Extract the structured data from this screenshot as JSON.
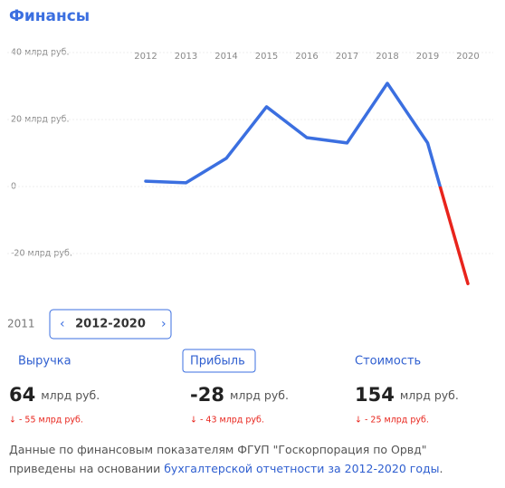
{
  "header": {
    "title": "Финансы"
  },
  "chart_data": {
    "type": "line",
    "categories": [
      "2012",
      "2013",
      "2014",
      "2015",
      "2016",
      "2017",
      "2018",
      "2019",
      "2020"
    ],
    "values": [
      1.6,
      1.1,
      8.4,
      23.8,
      14.6,
      13,
      30.8,
      13,
      -29
    ],
    "color": "#3b6fe0",
    "negative_color": "#e8241c",
    "ylim": [
      -30,
      40
    ],
    "yticks": [
      {
        "value": 40,
        "label": "40 млрд руб."
      },
      {
        "value": 20,
        "label": "20 млрд руб."
      },
      0,
      {
        "value": -20,
        "label": "-20 млрд руб."
      }
    ],
    "grid": true
  },
  "period": {
    "prev": "2011",
    "range": "2012-2020"
  },
  "metrics": [
    {
      "label": "Выручка",
      "value": "64",
      "unit": "млрд руб.",
      "change": "↓ - 55 млрд руб."
    },
    {
      "label": "Прибыль",
      "value": "-28",
      "unit": "млрд руб.",
      "change": "↓ - 43 млрд руб."
    },
    {
      "label": "Стоимость",
      "value": "154",
      "unit": "млрд руб.",
      "change": "↓ - 25 млрд руб."
    }
  ],
  "footer": {
    "text": "Данные по финансовым показателям ФГУП \"Госкорпорация по Орвд\" приведены на основании ",
    "link": "бухгалтерской отчетности за 2012-2020 годы",
    "end": "."
  }
}
